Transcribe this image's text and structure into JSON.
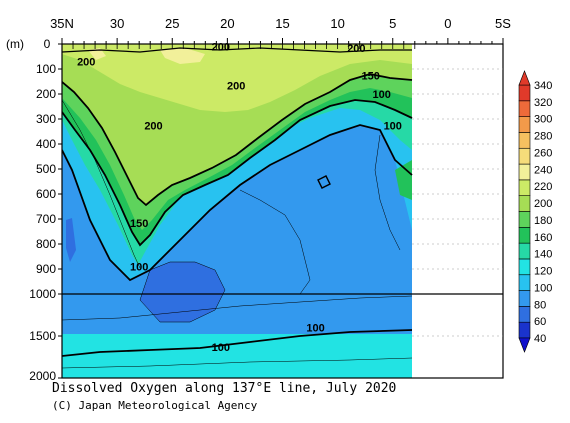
{
  "chart_data": {
    "type": "heatmap",
    "title": "Dissolved Oxygen along 137°E line, July 2020",
    "credit": "(C) Japan Meteorological Agency",
    "y_unit": "(m)",
    "x_ticks": [
      "35N",
      "30",
      "25",
      "20",
      "15",
      "10",
      "5",
      "0",
      "5S"
    ],
    "y_ticks_upper": [
      "0",
      "100",
      "200",
      "300",
      "400",
      "500",
      "600",
      "700",
      "800",
      "900",
      "1000"
    ],
    "y_ticks_lower": [
      "1500",
      "2000"
    ],
    "colorbar_ticks": [
      "40",
      "60",
      "80",
      "100",
      "120",
      "140",
      "160",
      "180",
      "200",
      "220",
      "240",
      "260",
      "280",
      "300",
      "320",
      "340"
    ],
    "colorbar_colors": [
      "#1a33cc",
      "#2f6fe0",
      "#3399ee",
      "#28c2f0",
      "#22e3e3",
      "#26d9a6",
      "#22c25a",
      "#5ed35c",
      "#a6dd55",
      "#ccea66",
      "#f2f09a",
      "#f5dc7a",
      "#f5c060",
      "#f29a4a",
      "#ee6a3a",
      "#e03a2a"
    ],
    "contour_labels": [
      {
        "text": "200",
        "lat": 20.6,
        "depth": 10
      },
      {
        "text": "200",
        "lat": 8.3,
        "depth": 16
      },
      {
        "text": "200",
        "lat": 32.8,
        "depth": 70
      },
      {
        "text": "200",
        "lat": 19.2,
        "depth": 165
      },
      {
        "text": "200",
        "lat": 26.7,
        "depth": 325
      },
      {
        "text": "150",
        "lat": 7.0,
        "depth": 125
      },
      {
        "text": "100",
        "lat": 6.0,
        "depth": 200
      },
      {
        "text": "100",
        "lat": 5.0,
        "depth": 325
      },
      {
        "text": "150",
        "lat": 28.0,
        "depth": 715
      },
      {
        "text": "100",
        "lat": 28.0,
        "depth": 890
      },
      {
        "text": "100",
        "lat": 12.0,
        "depth": 1400
      },
      {
        "text": "100",
        "lat": 20.6,
        "depth": 1630
      }
    ]
  }
}
